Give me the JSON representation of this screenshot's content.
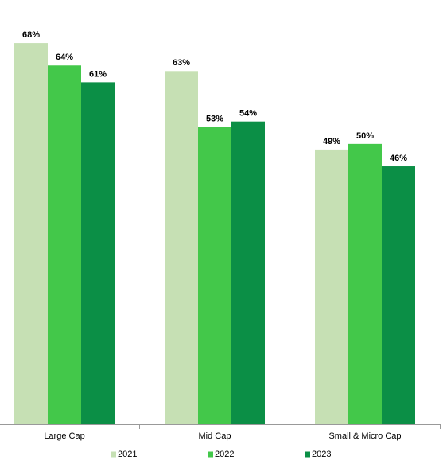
{
  "chart_data": {
    "type": "bar",
    "categories": [
      "Large Cap",
      "Mid Cap",
      "Small & Micro Cap"
    ],
    "series": [
      {
        "name": "2021",
        "color": "#c6e0b4",
        "values": [
          68,
          63,
          49
        ],
        "value_labels": [
          "68%",
          "63%",
          "49%"
        ]
      },
      {
        "name": "2022",
        "color": "#43c84a",
        "values": [
          64,
          53,
          50
        ],
        "value_labels": [
          "64%",
          "53%",
          "50%"
        ]
      },
      {
        "name": "2023",
        "color": "#0b8f46",
        "values": [
          61,
          54,
          46
        ],
        "value_labels": [
          "61%",
          "54%",
          "46%"
        ]
      }
    ],
    "ylim": [
      0,
      70
    ],
    "legend": "bottom"
  }
}
